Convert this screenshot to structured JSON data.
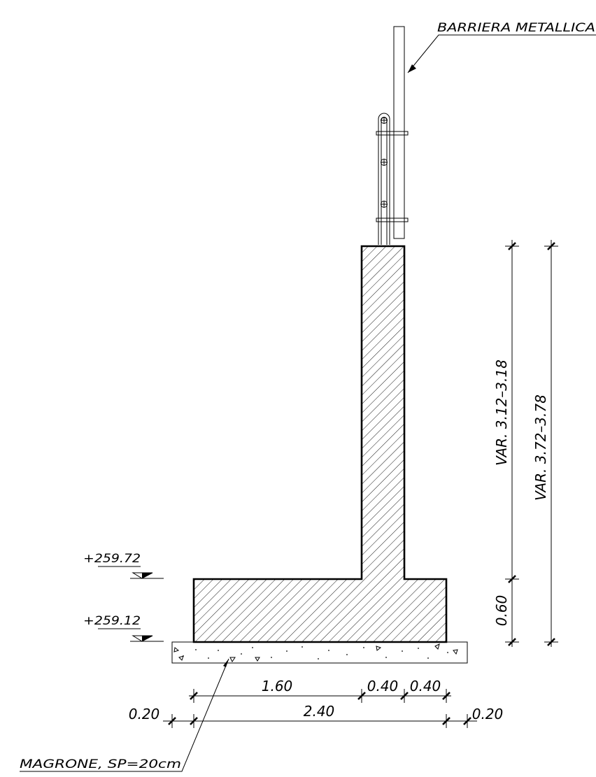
{
  "drawing": {
    "barrier_label": "BARRIERA METALLICA",
    "magrone_label": "MAGRONE, SP=20cm",
    "elevation_top": "+259.72",
    "elevation_bottom": "+259.12",
    "dim_wall_height": "VAR. 3.12–3.18",
    "dim_total_height": "VAR. 3.72–3.78",
    "dim_footing_height": "0.60",
    "dim_toe": "1.60",
    "dim_stem": "0.40",
    "dim_heel": "0.40",
    "dim_footing_width": "2.40",
    "dim_offset_left": "0.20",
    "dim_offset_right": "0.20"
  }
}
